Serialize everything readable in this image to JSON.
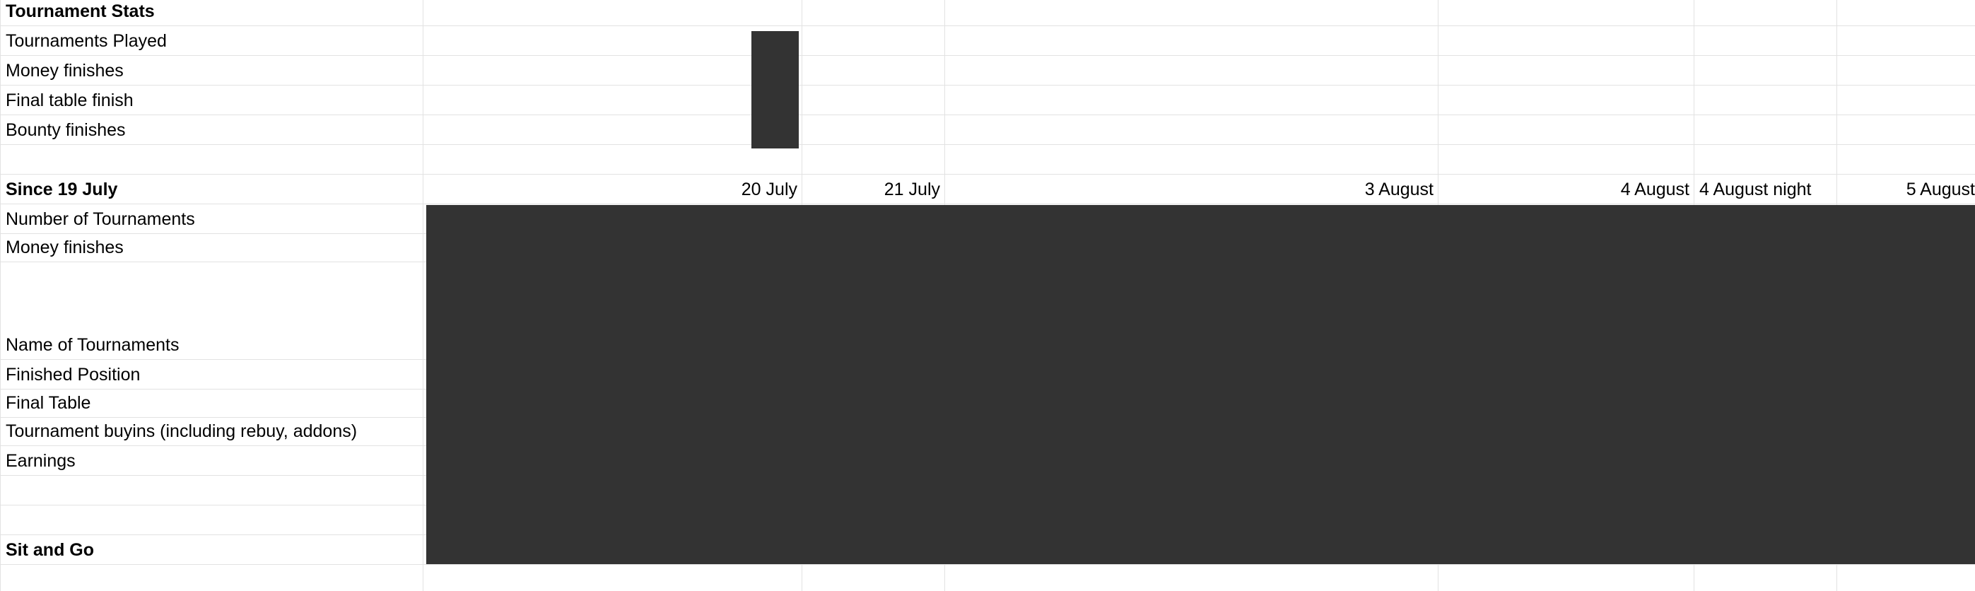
{
  "section_tournament_stats": {
    "title": "Tournament Stats",
    "rows": [
      "Tournaments Played",
      "Money finishes",
      "Final table finish",
      "Bounty finishes"
    ]
  },
  "section_since": {
    "title": "Since 19 July",
    "dates": [
      "20 July",
      "21 July",
      "3 August",
      "4 August",
      "4 August night",
      "5 August"
    ],
    "rows": [
      "Number of Tournaments",
      "Money finishes",
      "Name of Tournaments",
      "Finished Position",
      "Final Table",
      "Tournament buyins (including rebuy, addons)",
      "Earnings"
    ]
  },
  "section_sit_and_go": {
    "title": "Sit and Go"
  },
  "colors": {
    "grid": "#e2e2e2",
    "redaction": "#333333"
  }
}
